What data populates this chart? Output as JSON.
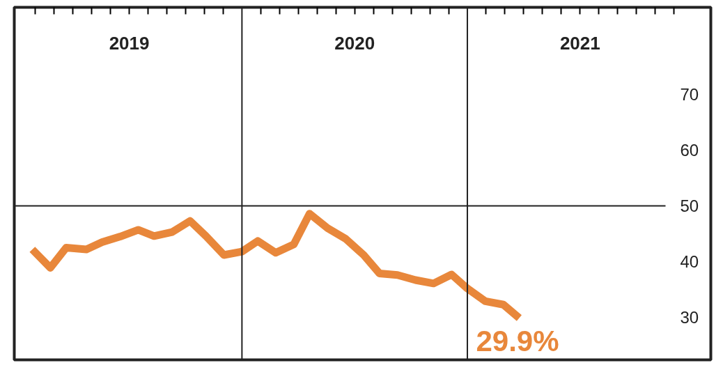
{
  "chart_data": {
    "type": "line",
    "x": [
      2019.07,
      2019.15,
      2019.22,
      2019.31,
      2019.38,
      2019.46,
      2019.54,
      2019.61,
      2019.69,
      2019.77,
      2019.84,
      2019.92,
      2020.0,
      2020.07,
      2020.15,
      2020.23,
      2020.3,
      2020.38,
      2020.46,
      2020.54,
      2020.61,
      2020.69,
      2020.77,
      2020.85,
      2020.93,
      2021.0,
      2021.08,
      2021.16,
      2021.23
    ],
    "series": [
      {
        "color": "#e8873b",
        "values": [
          42.2,
          38.9,
          42.5,
          42.2,
          43.5,
          44.5,
          45.7,
          44.6,
          45.3,
          47.3,
          44.6,
          41.2,
          41.8,
          43.7,
          41.6,
          43.1,
          48.6,
          46.0,
          44.1,
          41.2,
          37.9,
          37.6,
          36.7,
          36.1,
          37.7,
          35.2,
          32.9,
          32.3,
          29.9
        ]
      }
    ],
    "xlim": [
      2018.99,
      2022.08
    ],
    "xticks": [
      {
        "value": 2019.0833,
        "label": null
      },
      {
        "value": 2019.1667,
        "label": null
      },
      {
        "value": 2019.25,
        "label": null
      },
      {
        "value": 2019.3333,
        "label": null
      },
      {
        "value": 2019.4167,
        "label": null
      },
      {
        "value": 2019.5,
        "label": "2019"
      },
      {
        "value": 2019.5833,
        "label": null
      },
      {
        "value": 2019.6667,
        "label": null
      },
      {
        "value": 2019.75,
        "label": null
      },
      {
        "value": 2019.8333,
        "label": null
      },
      {
        "value": 2019.9167,
        "label": null
      },
      {
        "value": 2020.0833,
        "label": null
      },
      {
        "value": 2020.1667,
        "label": null
      },
      {
        "value": 2020.25,
        "label": null
      },
      {
        "value": 2020.3333,
        "label": null
      },
      {
        "value": 2020.4167,
        "label": null
      },
      {
        "value": 2020.5,
        "label": "2020"
      },
      {
        "value": 2020.5833,
        "label": null
      },
      {
        "value": 2020.6667,
        "label": null
      },
      {
        "value": 2020.75,
        "label": null
      },
      {
        "value": 2020.8333,
        "label": null
      },
      {
        "value": 2020.9167,
        "label": null
      },
      {
        "value": 2021.0833,
        "label": null
      },
      {
        "value": 2021.1667,
        "label": null
      },
      {
        "value": 2021.25,
        "label": null
      },
      {
        "value": 2021.3333,
        "label": null
      },
      {
        "value": 2021.4167,
        "label": null
      },
      {
        "value": 2021.5,
        "label": "2021"
      },
      {
        "value": 2021.5833,
        "label": null
      },
      {
        "value": 2021.6667,
        "label": null
      },
      {
        "value": 2021.75,
        "label": null
      },
      {
        "value": 2021.8333,
        "label": null
      },
      {
        "value": 2021.9167,
        "label": null
      }
    ],
    "ylim": [
      22.4,
      85.6
    ],
    "yticks": [
      30,
      40,
      50,
      60,
      70
    ],
    "ref_lines": [
      {
        "axis": "x",
        "value": 2020,
        "color": "#222222"
      },
      {
        "axis": "x",
        "value": 2021,
        "color": "#222222"
      },
      {
        "axis": "y",
        "value": 50,
        "color": "#222222"
      }
    ],
    "annotations": [
      {
        "text": "29.9%",
        "x": 2021.23,
        "y": 29.9
      }
    ],
    "grid": false,
    "marker": "none",
    "line_style": "solid"
  }
}
